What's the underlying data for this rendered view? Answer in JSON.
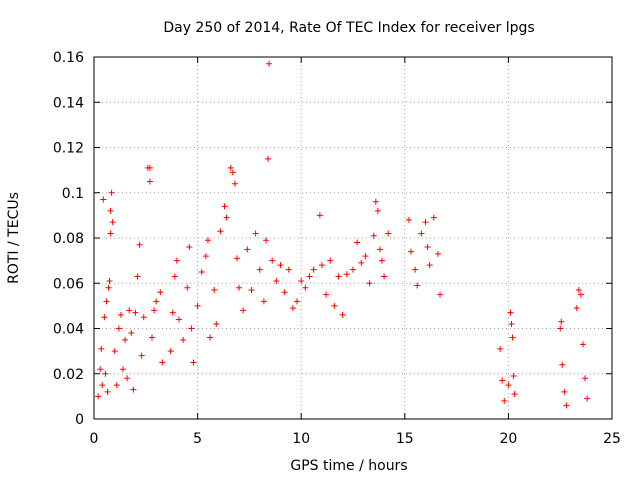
{
  "chart_data": {
    "type": "scatter",
    "title": "Day 250 of 2014, Rate Of TEC Index for receiver lpgs",
    "xlabel": "GPS time / hours",
    "ylabel": "ROTI / TECUs",
    "xlim": [
      0,
      25
    ],
    "ylim": [
      0,
      0.16
    ],
    "x_ticks": [
      "0",
      "5",
      "10",
      "15",
      "20",
      "25"
    ],
    "y_ticks": [
      "0",
      "0.02",
      "0.04",
      "0.06",
      "0.08",
      "0.1",
      "0.12",
      "0.14",
      "0.16"
    ],
    "grid": true,
    "marker": "+",
    "color": "#ff0000",
    "series": [
      {
        "values": [
          [
            0.2,
            0.01
          ],
          [
            0.3,
            0.022
          ],
          [
            0.35,
            0.031
          ],
          [
            0.4,
            0.015
          ],
          [
            0.45,
            0.097
          ],
          [
            0.5,
            0.045
          ],
          [
            0.55,
            0.02
          ],
          [
            0.6,
            0.052
          ],
          [
            0.65,
            0.012
          ],
          [
            0.7,
            0.058
          ],
          [
            0.75,
            0.061
          ],
          [
            0.8,
            0.092
          ],
          [
            0.8,
            0.082
          ],
          [
            0.85,
            0.1
          ],
          [
            0.9,
            0.087
          ],
          [
            1.0,
            0.03
          ],
          [
            1.1,
            0.015
          ],
          [
            1.2,
            0.04
          ],
          [
            1.3,
            0.046
          ],
          [
            1.4,
            0.022
          ],
          [
            1.5,
            0.035
          ],
          [
            1.6,
            0.018
          ],
          [
            1.7,
            0.048
          ],
          [
            1.8,
            0.038
          ],
          [
            1.9,
            0.013
          ],
          [
            2.0,
            0.047
          ],
          [
            2.1,
            0.063
          ],
          [
            2.2,
            0.077
          ],
          [
            2.3,
            0.028
          ],
          [
            2.4,
            0.045
          ],
          [
            2.6,
            0.111
          ],
          [
            2.7,
            0.111
          ],
          [
            2.7,
            0.105
          ],
          [
            2.8,
            0.036
          ],
          [
            2.9,
            0.048
          ],
          [
            3.0,
            0.052
          ],
          [
            3.2,
            0.056
          ],
          [
            3.3,
            0.025
          ],
          [
            3.7,
            0.03
          ],
          [
            3.8,
            0.047
          ],
          [
            3.9,
            0.063
          ],
          [
            4.0,
            0.07
          ],
          [
            4.1,
            0.044
          ],
          [
            4.3,
            0.035
          ],
          [
            4.5,
            0.058
          ],
          [
            4.6,
            0.076
          ],
          [
            4.7,
            0.04
          ],
          [
            4.8,
            0.025
          ],
          [
            5.0,
            0.05
          ],
          [
            5.2,
            0.065
          ],
          [
            5.4,
            0.072
          ],
          [
            5.5,
            0.079
          ],
          [
            5.6,
            0.036
          ],
          [
            5.8,
            0.057
          ],
          [
            5.9,
            0.042
          ],
          [
            6.1,
            0.083
          ],
          [
            6.3,
            0.094
          ],
          [
            6.4,
            0.089
          ],
          [
            6.6,
            0.111
          ],
          [
            6.7,
            0.109
          ],
          [
            6.8,
            0.104
          ],
          [
            6.9,
            0.071
          ],
          [
            7.0,
            0.058
          ],
          [
            7.2,
            0.048
          ],
          [
            7.4,
            0.075
          ],
          [
            7.6,
            0.057
          ],
          [
            7.8,
            0.082
          ],
          [
            8.0,
            0.066
          ],
          [
            8.2,
            0.052
          ],
          [
            8.3,
            0.079
          ],
          [
            8.4,
            0.115
          ],
          [
            8.45,
            0.157
          ],
          [
            8.6,
            0.07
          ],
          [
            8.8,
            0.061
          ],
          [
            9.0,
            0.068
          ],
          [
            9.2,
            0.056
          ],
          [
            9.4,
            0.066
          ],
          [
            9.6,
            0.049
          ],
          [
            9.8,
            0.052
          ],
          [
            10.0,
            0.061
          ],
          [
            10.2,
            0.058
          ],
          [
            10.4,
            0.063
          ],
          [
            10.6,
            0.066
          ],
          [
            10.9,
            0.09
          ],
          [
            11.0,
            0.068
          ],
          [
            11.2,
            0.055
          ],
          [
            11.4,
            0.07
          ],
          [
            11.6,
            0.05
          ],
          [
            11.8,
            0.063
          ],
          [
            12.0,
            0.046
          ],
          [
            12.2,
            0.064
          ],
          [
            12.5,
            0.066
          ],
          [
            12.7,
            0.078
          ],
          [
            12.9,
            0.069
          ],
          [
            13.1,
            0.072
          ],
          [
            13.3,
            0.06
          ],
          [
            13.5,
            0.081
          ],
          [
            13.6,
            0.096
          ],
          [
            13.7,
            0.092
          ],
          [
            13.8,
            0.075
          ],
          [
            13.9,
            0.07
          ],
          [
            14.0,
            0.063
          ],
          [
            14.2,
            0.082
          ],
          [
            15.2,
            0.088
          ],
          [
            15.3,
            0.074
          ],
          [
            15.5,
            0.066
          ],
          [
            15.6,
            0.059
          ],
          [
            15.8,
            0.082
          ],
          [
            16.0,
            0.087
          ],
          [
            16.1,
            0.076
          ],
          [
            16.2,
            0.068
          ],
          [
            16.4,
            0.089
          ],
          [
            16.6,
            0.073
          ],
          [
            16.7,
            0.055
          ],
          [
            19.6,
            0.031
          ],
          [
            19.7,
            0.017
          ],
          [
            19.8,
            0.008
          ],
          [
            20.0,
            0.015
          ],
          [
            20.1,
            0.047
          ],
          [
            20.15,
            0.042
          ],
          [
            20.2,
            0.036
          ],
          [
            20.25,
            0.019
          ],
          [
            20.3,
            0.011
          ],
          [
            22.5,
            0.04
          ],
          [
            22.55,
            0.043
          ],
          [
            22.6,
            0.024
          ],
          [
            22.7,
            0.012
          ],
          [
            22.8,
            0.006
          ],
          [
            23.3,
            0.049
          ],
          [
            23.4,
            0.057
          ],
          [
            23.5,
            0.055
          ],
          [
            23.6,
            0.033
          ],
          [
            23.7,
            0.018
          ],
          [
            23.8,
            0.009
          ]
        ]
      }
    ]
  }
}
